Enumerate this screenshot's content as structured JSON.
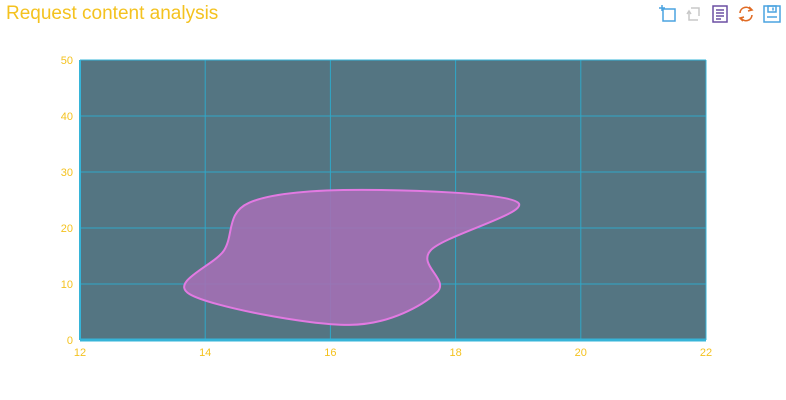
{
  "header": {
    "title": "Request content analysis"
  },
  "toolbox": [
    {
      "name": "zoom-icon",
      "color": "#4aa3e0"
    },
    {
      "name": "zoom-reset-icon",
      "color": "#c8c8c8"
    },
    {
      "name": "data-view-icon",
      "color": "#6b4fa3"
    },
    {
      "name": "restore-icon",
      "color": "#e06b24"
    },
    {
      "name": "save-image-icon",
      "color": "#4aa3e0"
    }
  ],
  "colors": {
    "plot_background": "#547582",
    "grid": "#2fa8c8",
    "axis_line": "#36b4d8",
    "tick_label": "#f4c21f",
    "title": "#f4c21f",
    "area_fill": "#a370b4",
    "area_stroke": "#e27ae2"
  },
  "chart_data": {
    "type": "area",
    "title": "Request content analysis",
    "xlabel": "",
    "ylabel": "",
    "xlim": [
      12,
      22
    ],
    "ylim": [
      0,
      50
    ],
    "x_ticks": [
      "12",
      "14",
      "16",
      "18",
      "20",
      "22"
    ],
    "y_ticks": [
      "0",
      "10",
      "20",
      "30",
      "40",
      "50"
    ],
    "grid": true,
    "smooth": true,
    "series": [
      {
        "points": [
          [
            16.3,
            2.7
          ],
          [
            17.7,
            8.5
          ],
          [
            17.6,
            16
          ],
          [
            19.0,
            24.5
          ],
          [
            16.5,
            26.8
          ],
          [
            14.7,
            24.5
          ],
          [
            14.3,
            16
          ],
          [
            13.75,
            8.2
          ]
        ]
      }
    ]
  }
}
